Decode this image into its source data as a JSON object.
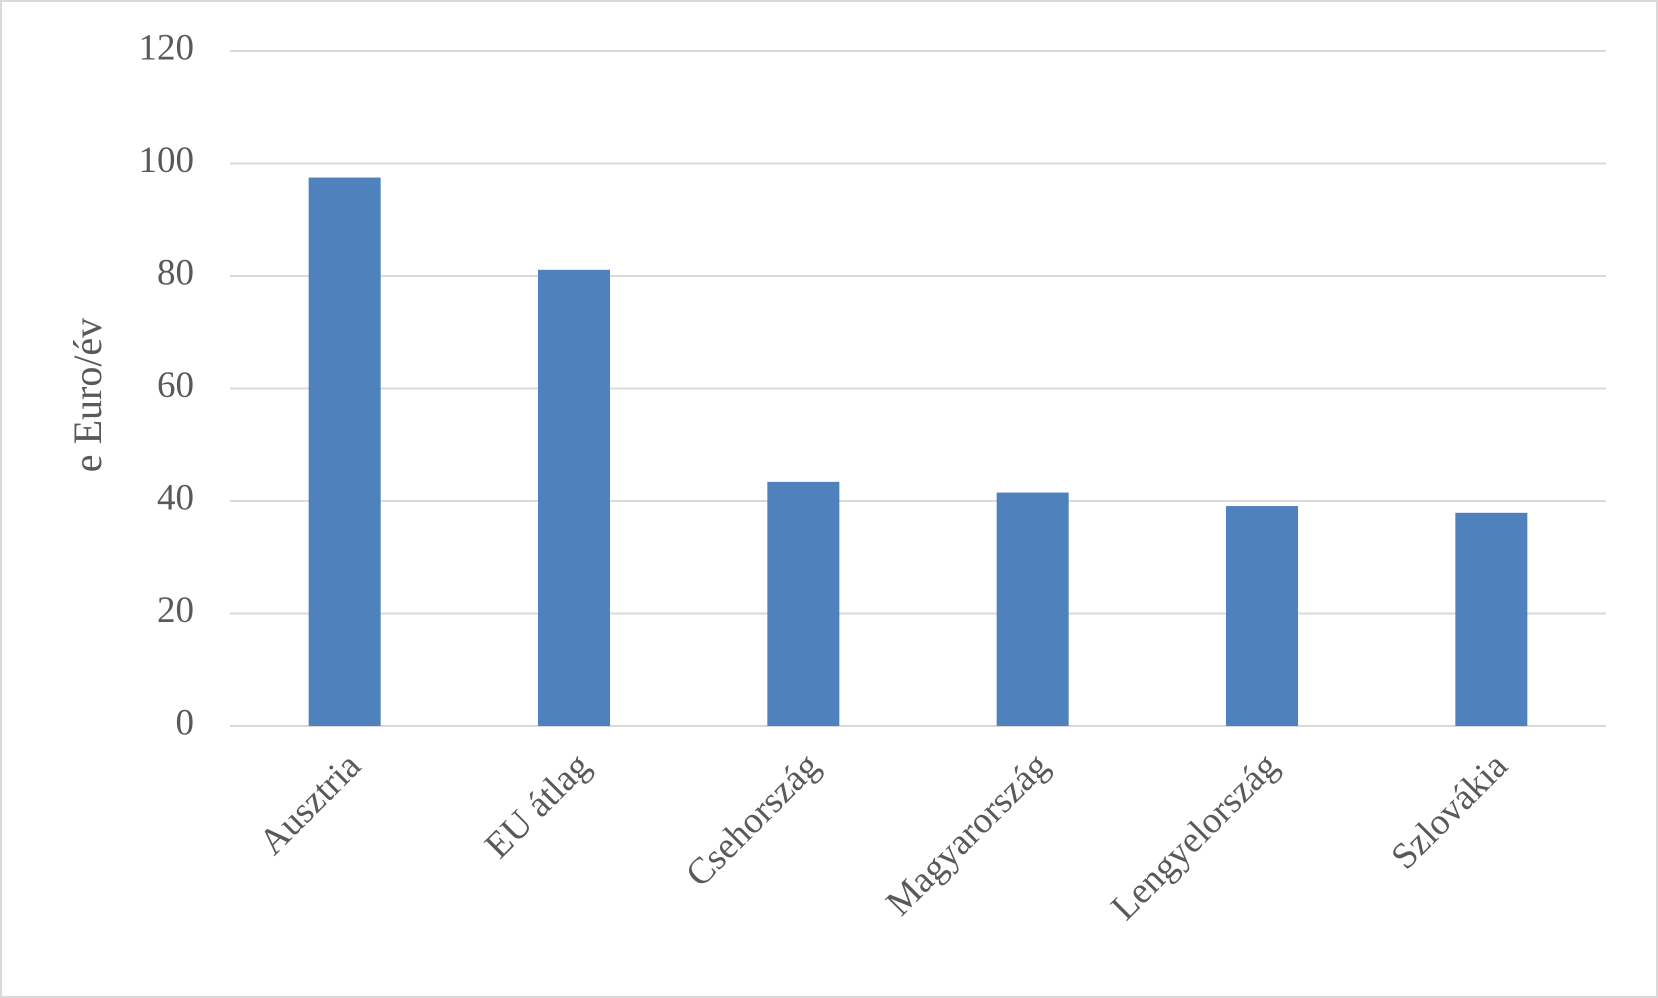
{
  "chart_data": {
    "type": "bar",
    "y_label": "e Euro/év",
    "categories": [
      "Ausztria",
      "EU átlag",
      "Csehország",
      "Magyarország",
      "Lengyelország",
      "Szlovákia"
    ],
    "values": [
      97.5,
      81.1,
      43.4,
      41.5,
      39.1,
      37.9
    ],
    "color": "#4f81bd",
    "ylim": [
      0,
      120
    ],
    "yticks": [
      0,
      20,
      40,
      60,
      80,
      100,
      120
    ],
    "grid": true
  }
}
